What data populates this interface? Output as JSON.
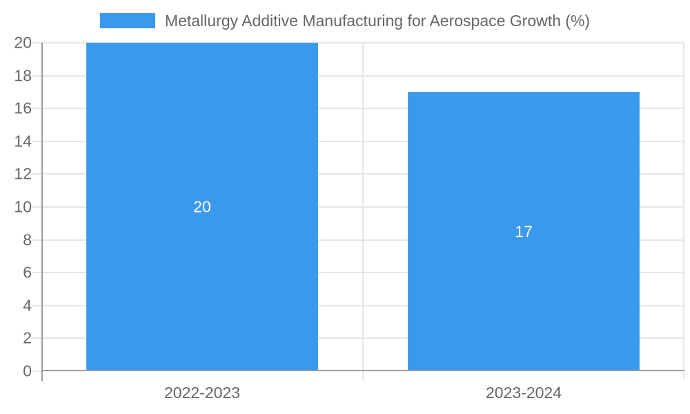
{
  "chart_data": {
    "type": "bar",
    "title": "Metallurgy Additive Manufacturing for Aerospace Growth (%)",
    "legend": {
      "position": "top",
      "label": "Metallurgy Additive Manufacturing for Aerospace Growth (%)"
    },
    "categories": [
      "2022-2023",
      "2023-2024"
    ],
    "series": [
      {
        "name": "Metallurgy Additive Manufacturing for Aerospace Growth (%)",
        "values": [
          20,
          17
        ]
      }
    ],
    "bar_value_labels": [
      "20",
      "17"
    ],
    "xlabel": "",
    "ylabel": "",
    "ylim": [
      0,
      20
    ],
    "ytick_step": 2,
    "yticks": [
      0,
      2,
      4,
      6,
      8,
      10,
      12,
      14,
      16,
      18,
      20
    ],
    "grid": true,
    "bar_width_fraction": 0.72,
    "colors": {
      "bar": "#3A99EC",
      "bar_border": "#4DA3EE",
      "bar_label": "#FFFFFF",
      "grid": "#E6E6E6",
      "axis": "#9C9C9C",
      "text": "#666666",
      "background": "#FFFFFF"
    }
  }
}
